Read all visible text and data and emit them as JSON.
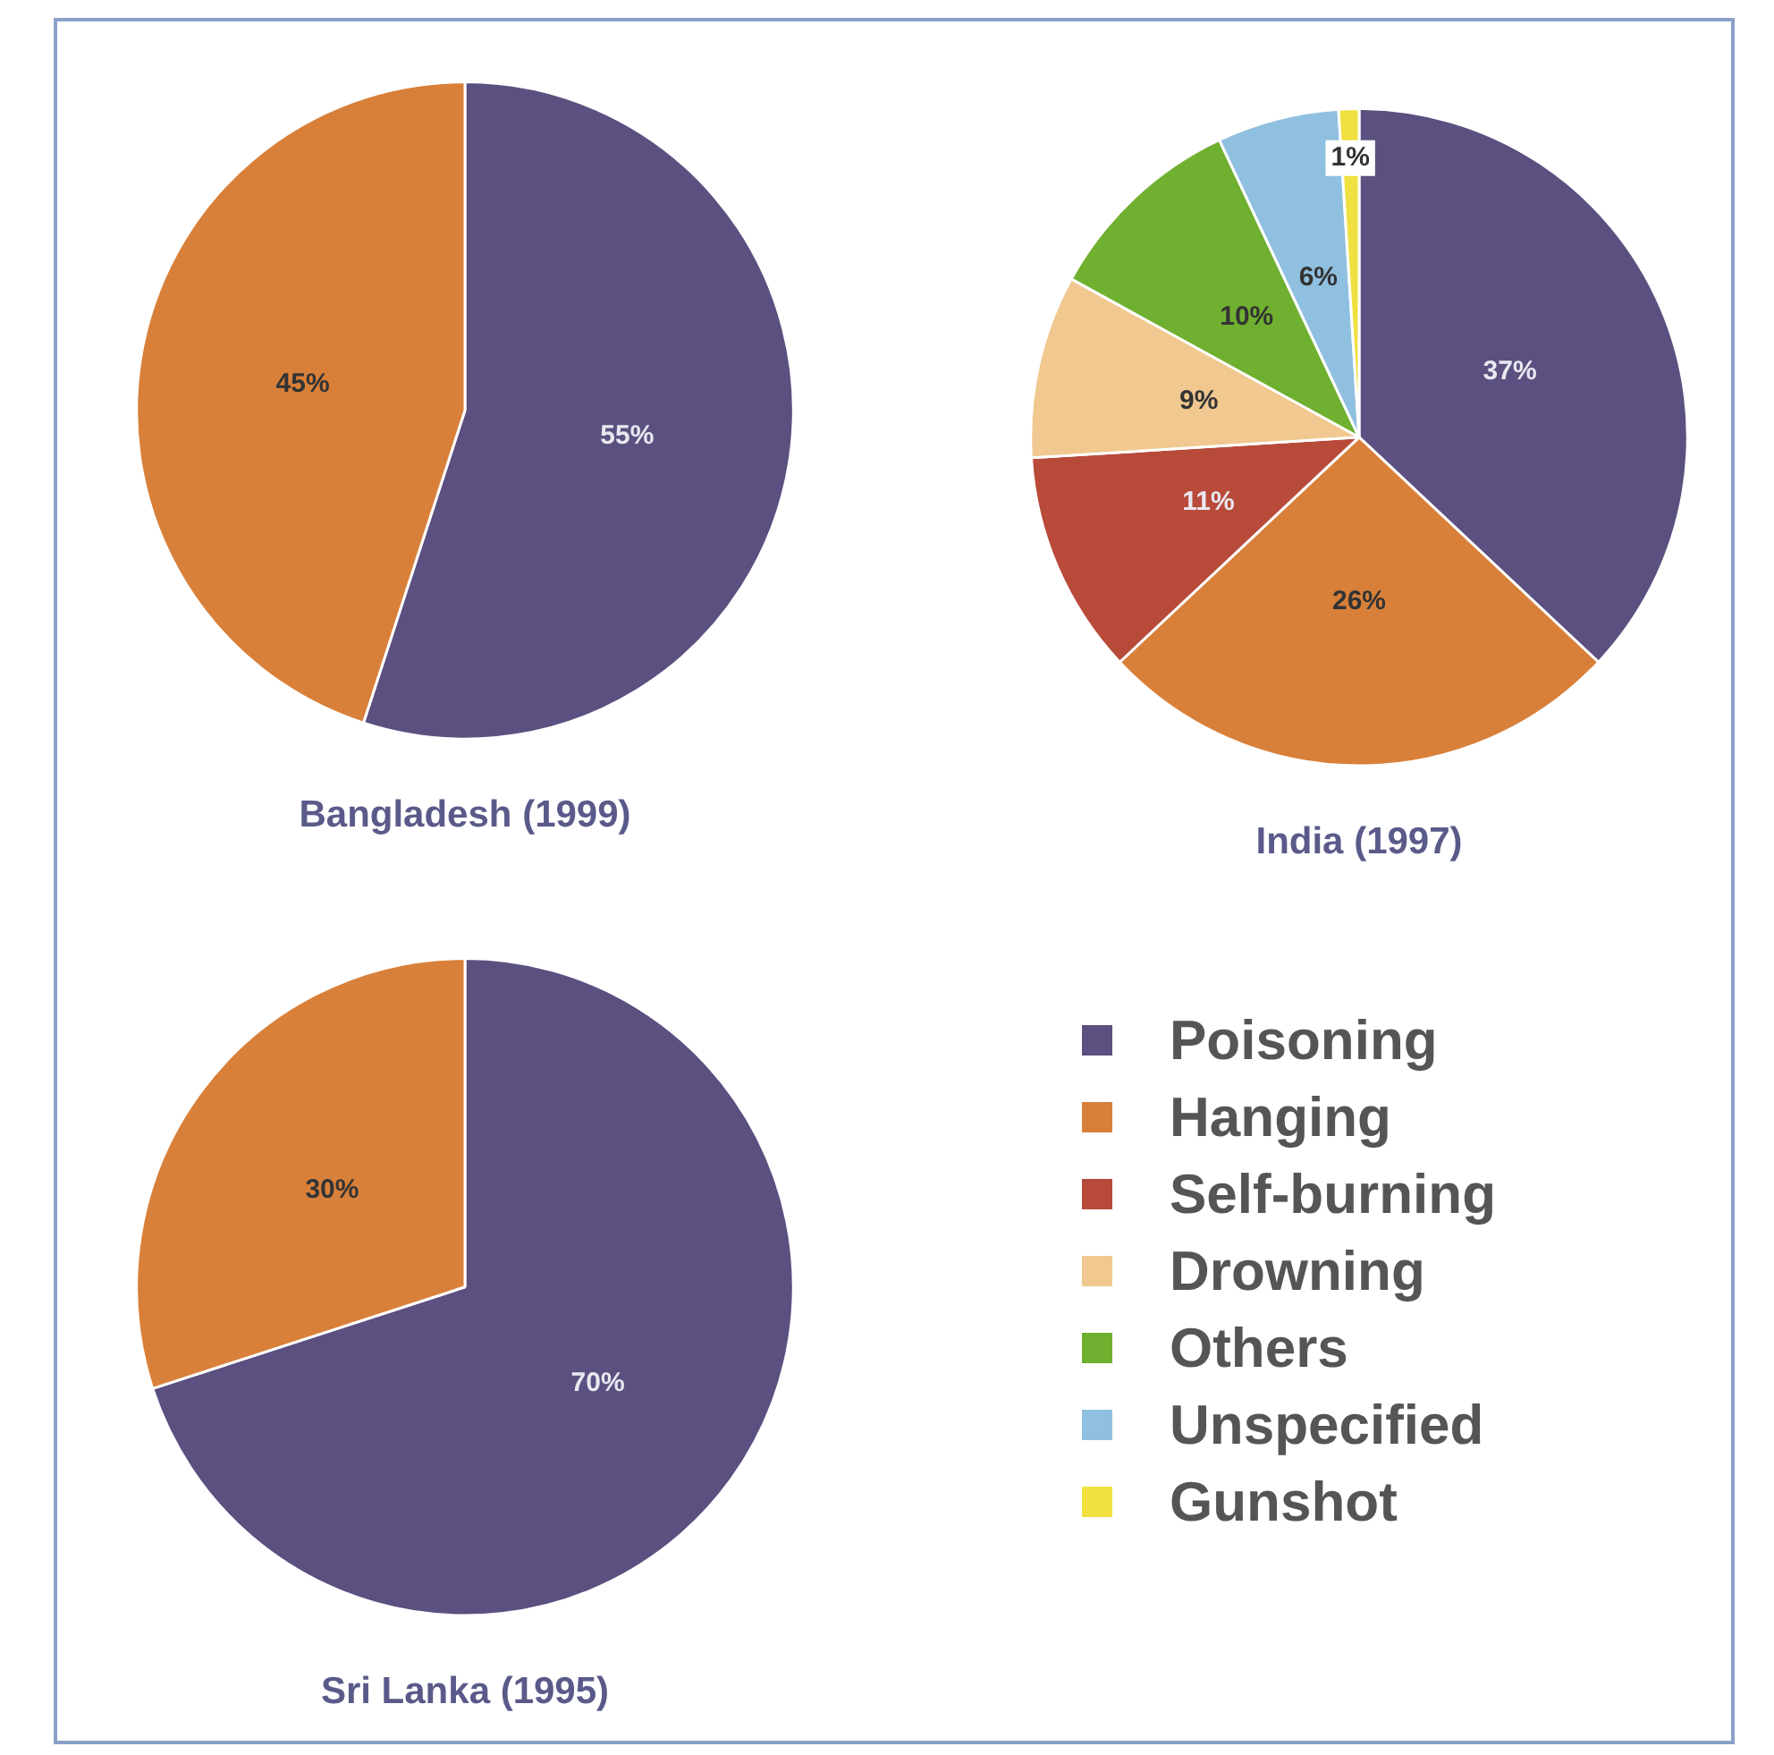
{
  "chart_data": [
    {
      "type": "pie",
      "title": "Bangladesh (1999)",
      "categories": [
        null,
        null
      ],
      "values": [
        55,
        45
      ],
      "colors": [
        "#5b5080",
        "#d8803a"
      ],
      "value_labels": [
        "55%",
        "45%"
      ]
    },
    {
      "type": "pie",
      "title": "India (1997)",
      "categories": [
        "Poisoning",
        "Hanging",
        "Self-burning",
        "Drowning",
        "Others",
        "Unspecified",
        "Gunshot"
      ],
      "values": [
        37,
        26,
        11,
        9,
        10,
        6,
        1
      ],
      "colors": [
        "#5b5080",
        "#d8803a",
        "#b84a3a",
        "#f0c890",
        "#70b030",
        "#90c0e0",
        "#f0e040"
      ],
      "value_labels": [
        "37%",
        "26%",
        "11%",
        "9%",
        "10%",
        "6%",
        "1%"
      ],
      "legend": "bottom"
    },
    {
      "type": "pie",
      "title": "Sri Lanka (1995)",
      "categories": [
        null,
        null
      ],
      "values": [
        70,
        30
      ],
      "colors": [
        "#5b5080",
        "#d8803a"
      ],
      "value_labels": [
        "70%",
        "30%"
      ]
    }
  ]
}
